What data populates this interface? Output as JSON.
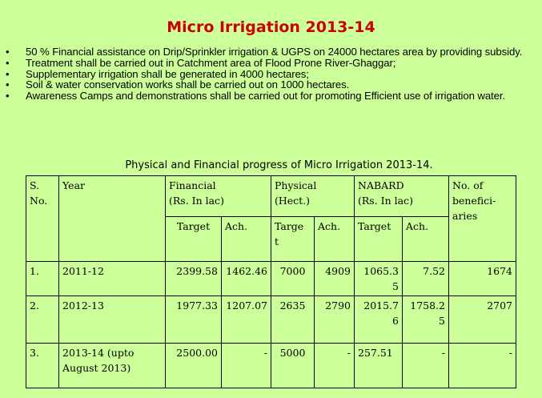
{
  "title": "Micro Irrigation 2013-14",
  "bullets": [
    "50 % Financial  assistance on Drip/Sprinkler irrigation & UGPS on 24000 hectares area by providing subsidy.",
    "Treatment shall be carried out in Catchment area of Flood Prone River-Ghaggar;",
    "Supplementary irrigation shall be generated in 4000 hectares;",
    "Soil & water conservation works shall be carried out on 1000 hectares.",
    "Awareness Camps and demonstrations shall be carried out for promoting Efficient use of irrigation water."
  ],
  "bullet_glyph": "•",
  "table_title": "Physical and Financial progress of Micro Irrigation 2013-14.",
  "table": {
    "headers": {
      "sno": "S. No.",
      "year": "Year",
      "financial": "Financial",
      "financial_unit": "(Rs. In lac)",
      "physical": "Physical (Hect.)",
      "nabard": "NABARD",
      "nabard_unit": "(Rs. In lac)",
      "beneficiaries": "No. of benefici-aries",
      "target": "Target",
      "ach": "Ach.",
      "target_wrapped": "Targe t"
    },
    "rows": [
      {
        "sno": "1.",
        "year": "2011-12",
        "fin_target": "2399.58",
        "fin_ach": "1462.46",
        "phy_target": "7000",
        "phy_ach": "4909",
        "nab_target": "1065.3 5",
        "nab_ach": "7.52",
        "beneficiaries": "1674"
      },
      {
        "sno": "2.",
        "year": "2012-13",
        "fin_target": "1977.33",
        "fin_ach": "1207.07",
        "phy_target": "2635",
        "phy_ach": "2790",
        "nab_target": "2015.7 6",
        "nab_ach": "1758.2 5",
        "beneficiaries": "2707"
      },
      {
        "sno": "3.",
        "year": "2013-14 (upto August 2013)",
        "fin_target": "2500.00",
        "fin_ach": "-",
        "phy_target": "5000",
        "phy_ach": "-",
        "nab_target": "257.51",
        "nab_ach": "-",
        "beneficiaries": "-"
      }
    ]
  },
  "colors": {
    "background": "#ccff99",
    "title": "#cc0000"
  }
}
